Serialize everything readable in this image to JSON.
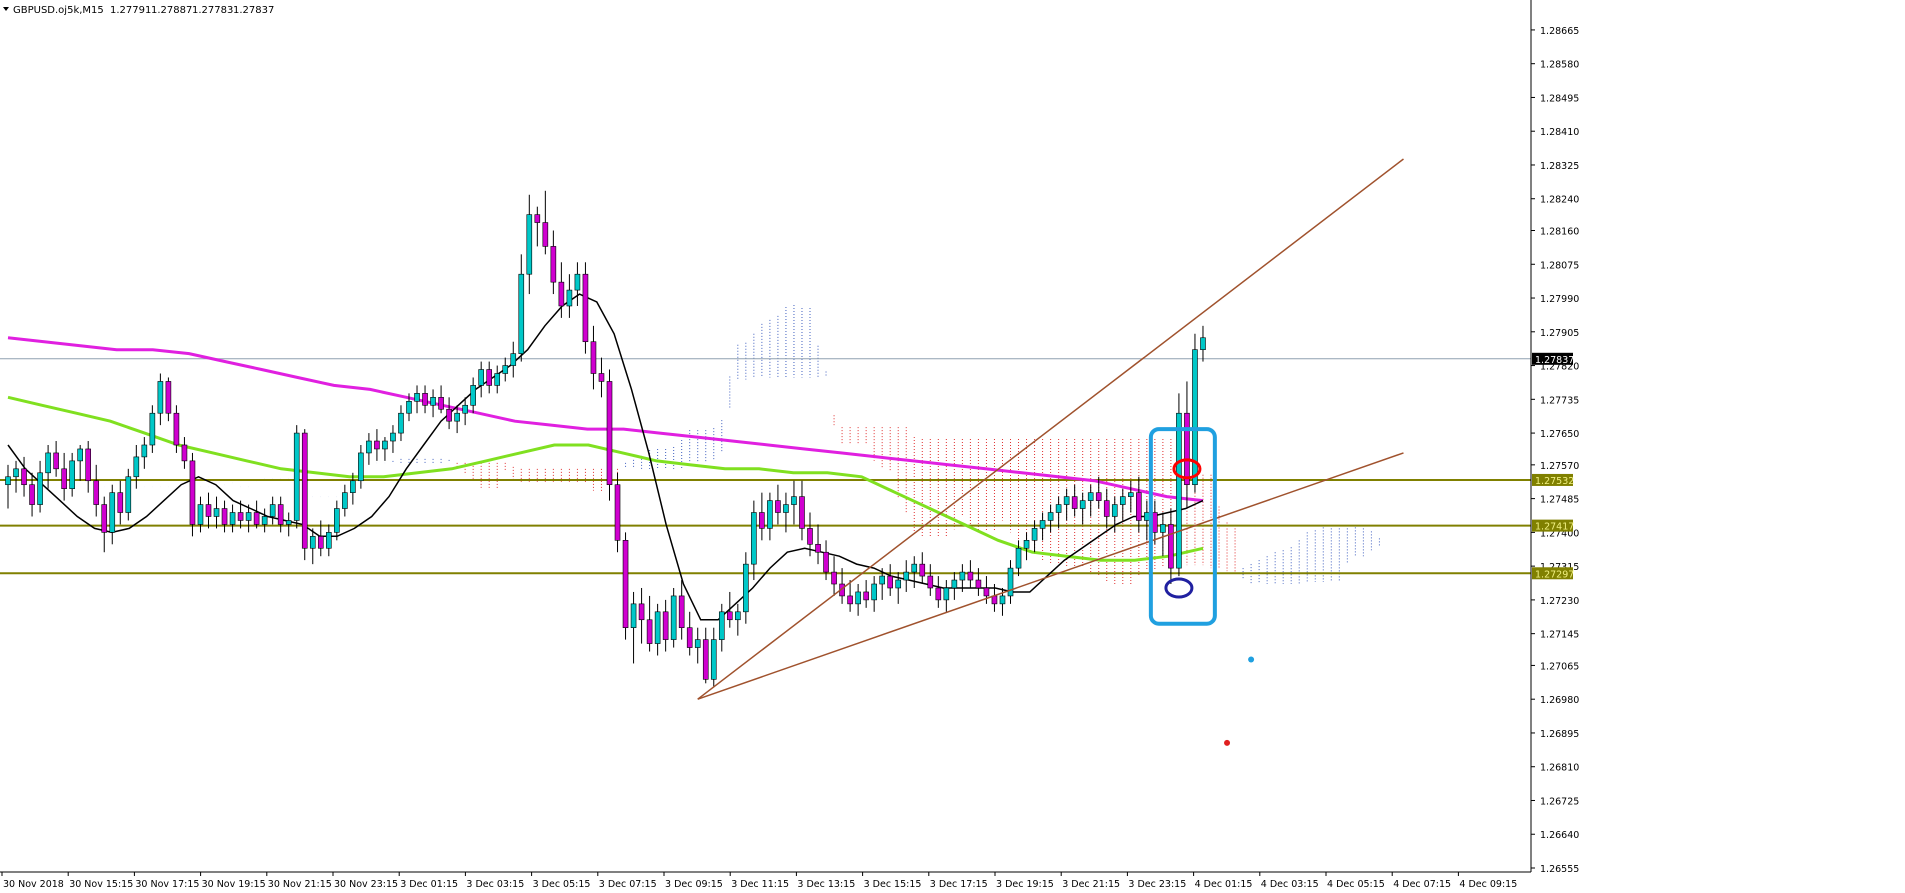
{
  "header": {
    "menu_icon": "triangle-down-icon",
    "symbol": "GBPUSD.oj5k,M15",
    "open": "1.27791",
    "high": "1.27887",
    "low": "1.27783",
    "close": "1.27837"
  },
  "colors": {
    "bull": "#00c8c8",
    "bear": "#d000d0",
    "sma_fast": "#000000",
    "sma_mid": "#80e020",
    "sma_slow": "#e020e0",
    "trendline": "#a0522d",
    "level": "#808000",
    "level_label_bg": "#808000",
    "level_label_text": "#f0f080",
    "price_label_bg": "#000000",
    "price_label_text": "#ffffff",
    "cloud_bear": "#e03030",
    "cloud_bull": "#4060c0",
    "annotation_box": "#20a0e0",
    "annotation_red": "#ff0000",
    "annotation_blue": "#2020a0"
  },
  "chart_data": {
    "type": "candlestick",
    "symbol": "GBPUSD.oj5k",
    "timeframe": "M15",
    "ylim": [
      1.26555,
      1.2869
    ],
    "y_ticks": [
      "1.28665",
      "1.28580",
      "1.28495",
      "1.28410",
      "1.28325",
      "1.28240",
      "1.28160",
      "1.28075",
      "1.27990",
      "1.27905",
      "1.27820",
      "1.27735",
      "1.27650",
      "1.27570",
      "1.27485",
      "1.27400",
      "1.27315",
      "1.27230",
      "1.27145",
      "1.27065",
      "1.26980",
      "1.26895",
      "1.26810",
      "1.26725",
      "1.26640",
      "1.26555"
    ],
    "x_ticks": [
      "30 Nov 2018",
      "30 Nov 15:15",
      "30 Nov 17:15",
      "30 Nov 19:15",
      "30 Nov 21:15",
      "30 Nov 23:15",
      "3 Dec 01:15",
      "3 Dec 03:15",
      "3 Dec 05:15",
      "3 Dec 07:15",
      "3 Dec 09:15",
      "3 Dec 11:15",
      "3 Dec 13:15",
      "3 Dec 15:15",
      "3 Dec 17:15",
      "3 Dec 19:15",
      "3 Dec 21:15",
      "3 Dec 23:15",
      "4 Dec 01:15",
      "4 Dec 03:15",
      "4 Dec 05:15",
      "4 Dec 07:15",
      "4 Dec 09:15"
    ],
    "bars": [
      [
        1.2752,
        1.2757,
        1.2746,
        1.2754
      ],
      [
        1.2754,
        1.2758,
        1.275,
        1.2756
      ],
      [
        1.2756,
        1.2759,
        1.2749,
        1.2752
      ],
      [
        1.2752,
        1.2755,
        1.2744,
        1.2747
      ],
      [
        1.2747,
        1.2758,
        1.2745,
        1.2755
      ],
      [
        1.2755,
        1.2762,
        1.2751,
        1.276
      ],
      [
        1.276,
        1.2763,
        1.2754,
        1.2756
      ],
      [
        1.2756,
        1.276,
        1.2748,
        1.2751
      ],
      [
        1.2751,
        1.276,
        1.2749,
        1.2758
      ],
      [
        1.2758,
        1.2762,
        1.2753,
        1.2761
      ],
      [
        1.2761,
        1.2763,
        1.275,
        1.2753
      ],
      [
        1.2753,
        1.2757,
        1.2744,
        1.2747
      ],
      [
        1.2747,
        1.2749,
        1.2735,
        1.274
      ],
      [
        1.274,
        1.2752,
        1.2737,
        1.275
      ],
      [
        1.275,
        1.2753,
        1.2742,
        1.2745
      ],
      [
        1.2745,
        1.2756,
        1.2743,
        1.2754
      ],
      [
        1.2754,
        1.2762,
        1.2751,
        1.2759
      ],
      [
        1.2759,
        1.2764,
        1.2756,
        1.2762
      ],
      [
        1.2762,
        1.2772,
        1.276,
        1.277
      ],
      [
        1.277,
        1.278,
        1.2767,
        1.2778
      ],
      [
        1.2778,
        1.2779,
        1.2768,
        1.277
      ],
      [
        1.277,
        1.2772,
        1.276,
        1.2762
      ],
      [
        1.2762,
        1.2764,
        1.2756,
        1.2758
      ],
      [
        1.2758,
        1.276,
        1.2739,
        1.2742
      ],
      [
        1.2742,
        1.2749,
        1.274,
        1.2747
      ],
      [
        1.2747,
        1.275,
        1.2741,
        1.2744
      ],
      [
        1.2744,
        1.2749,
        1.2741,
        1.2746
      ],
      [
        1.2746,
        1.2748,
        1.274,
        1.2742
      ],
      [
        1.2742,
        1.2747,
        1.274,
        1.2745
      ],
      [
        1.2745,
        1.2748,
        1.2741,
        1.2743
      ],
      [
        1.2743,
        1.2747,
        1.274,
        1.2745
      ],
      [
        1.2745,
        1.2748,
        1.2741,
        1.2742
      ],
      [
        1.2742,
        1.2746,
        1.274,
        1.2744
      ],
      [
        1.2744,
        1.2749,
        1.2742,
        1.2747
      ],
      [
        1.2747,
        1.2749,
        1.274,
        1.2742
      ],
      [
        1.2742,
        1.2745,
        1.2739,
        1.2743
      ],
      [
        1.2743,
        1.2767,
        1.2741,
        1.2765
      ],
      [
        1.2765,
        1.2766,
        1.2733,
        1.2736
      ],
      [
        1.2736,
        1.2741,
        1.2732,
        1.2739
      ],
      [
        1.2739,
        1.2743,
        1.2734,
        1.2736
      ],
      [
        1.2736,
        1.2742,
        1.2734,
        1.274
      ],
      [
        1.274,
        1.2748,
        1.2738,
        1.2746
      ],
      [
        1.2746,
        1.2752,
        1.2744,
        1.275
      ],
      [
        1.275,
        1.2755,
        1.2747,
        1.2753
      ],
      [
        1.2753,
        1.2762,
        1.2751,
        1.276
      ],
      [
        1.276,
        1.2765,
        1.2757,
        1.2763
      ],
      [
        1.2763,
        1.2766,
        1.2758,
        1.2761
      ],
      [
        1.2761,
        1.2764,
        1.2758,
        1.2763
      ],
      [
        1.2763,
        1.2767,
        1.276,
        1.2765
      ],
      [
        1.2765,
        1.2772,
        1.2763,
        1.277
      ],
      [
        1.277,
        1.2775,
        1.2768,
        1.2773
      ],
      [
        1.2773,
        1.2777,
        1.277,
        1.2775
      ],
      [
        1.2775,
        1.2777,
        1.277,
        1.2772
      ],
      [
        1.2772,
        1.2776,
        1.2769,
        1.2774
      ],
      [
        1.2774,
        1.2777,
        1.277,
        1.2771
      ],
      [
        1.2771,
        1.2774,
        1.2766,
        1.2768
      ],
      [
        1.2768,
        1.2772,
        1.2765,
        1.277
      ],
      [
        1.277,
        1.2774,
        1.2767,
        1.2772
      ],
      [
        1.2772,
        1.2779,
        1.277,
        1.2777
      ],
      [
        1.2777,
        1.2783,
        1.2774,
        1.2781
      ],
      [
        1.2781,
        1.2783,
        1.2775,
        1.2777
      ],
      [
        1.2777,
        1.2782,
        1.2775,
        1.278
      ],
      [
        1.278,
        1.2784,
        1.2778,
        1.2782
      ],
      [
        1.2782,
        1.2788,
        1.2779,
        1.2785
      ],
      [
        1.2785,
        1.281,
        1.2783,
        1.2805
      ],
      [
        1.2805,
        1.2825,
        1.28,
        1.282
      ],
      [
        1.282,
        1.2822,
        1.2812,
        1.2818
      ],
      [
        1.2818,
        1.2826,
        1.281,
        1.2812
      ],
      [
        1.2812,
        1.2816,
        1.28,
        1.2803
      ],
      [
        1.2803,
        1.2808,
        1.2794,
        1.2797
      ],
      [
        1.2797,
        1.2805,
        1.2794,
        1.2801
      ],
      [
        1.2801,
        1.2808,
        1.2797,
        1.2805
      ],
      [
        1.2805,
        1.2808,
        1.2785,
        1.2788
      ],
      [
        1.2788,
        1.2792,
        1.2776,
        1.278
      ],
      [
        1.278,
        1.2784,
        1.2774,
        1.2778
      ],
      [
        1.2778,
        1.2781,
        1.2748,
        1.2752
      ],
      [
        1.2752,
        1.2755,
        1.2735,
        1.2738
      ],
      [
        1.2738,
        1.274,
        1.2713,
        1.2716
      ],
      [
        1.2716,
        1.2725,
        1.2707,
        1.2722
      ],
      [
        1.2722,
        1.2726,
        1.2712,
        1.2718
      ],
      [
        1.2718,
        1.2724,
        1.271,
        1.2712
      ],
      [
        1.2712,
        1.2722,
        1.2709,
        1.272
      ],
      [
        1.272,
        1.2723,
        1.271,
        1.2713
      ],
      [
        1.2713,
        1.2726,
        1.2711,
        1.2724
      ],
      [
        1.2724,
        1.2728,
        1.2713,
        1.2716
      ],
      [
        1.2716,
        1.272,
        1.2709,
        1.2711
      ],
      [
        1.2711,
        1.2716,
        1.2707,
        1.2713
      ],
      [
        1.2713,
        1.2716,
        1.2702,
        1.2703
      ],
      [
        1.2703,
        1.2716,
        1.2701,
        1.2713
      ],
      [
        1.2713,
        1.2722,
        1.271,
        1.272
      ],
      [
        1.272,
        1.2725,
        1.2716,
        1.2718
      ],
      [
        1.2718,
        1.2722,
        1.2714,
        1.272
      ],
      [
        1.272,
        1.2735,
        1.2717,
        1.2732
      ],
      [
        1.2732,
        1.2748,
        1.2728,
        1.2745
      ],
      [
        1.2745,
        1.275,
        1.2738,
        1.2741
      ],
      [
        1.2741,
        1.275,
        1.2738,
        1.2748
      ],
      [
        1.2748,
        1.2752,
        1.2742,
        1.2745
      ],
      [
        1.2745,
        1.275,
        1.274,
        1.2747
      ],
      [
        1.2747,
        1.2753,
        1.2742,
        1.2749
      ],
      [
        1.2749,
        1.2753,
        1.2738,
        1.2741
      ],
      [
        1.2741,
        1.2745,
        1.2734,
        1.2737
      ],
      [
        1.2737,
        1.2742,
        1.2732,
        1.2735
      ],
      [
        1.2735,
        1.2738,
        1.2728,
        1.273
      ],
      [
        1.273,
        1.2734,
        1.2724,
        1.2727
      ],
      [
        1.2727,
        1.2731,
        1.2722,
        1.2724
      ],
      [
        1.2724,
        1.2728,
        1.272,
        1.2722
      ],
      [
        1.2722,
        1.2727,
        1.2719,
        1.2725
      ],
      [
        1.2725,
        1.2728,
        1.2721,
        1.2723
      ],
      [
        1.2723,
        1.2729,
        1.272,
        1.2727
      ],
      [
        1.2727,
        1.2731,
        1.2723,
        1.2729
      ],
      [
        1.2729,
        1.2732,
        1.2724,
        1.2726
      ],
      [
        1.2726,
        1.273,
        1.2722,
        1.2728
      ],
      [
        1.2728,
        1.2733,
        1.2725,
        1.273
      ],
      [
        1.273,
        1.2734,
        1.2726,
        1.2732
      ],
      [
        1.2732,
        1.2735,
        1.2727,
        1.2729
      ],
      [
        1.2729,
        1.2732,
        1.2724,
        1.2726
      ],
      [
        1.2726,
        1.2729,
        1.2721,
        1.2723
      ],
      [
        1.2723,
        1.2728,
        1.272,
        1.2726
      ],
      [
        1.2726,
        1.273,
        1.2723,
        1.2728
      ],
      [
        1.2728,
        1.2732,
        1.2725,
        1.273
      ],
      [
        1.273,
        1.2733,
        1.2726,
        1.2728
      ],
      [
        1.2728,
        1.2731,
        1.2724,
        1.2726
      ],
      [
        1.2726,
        1.2729,
        1.2722,
        1.2724
      ],
      [
        1.2724,
        1.2727,
        1.272,
        1.2722
      ],
      [
        1.2722,
        1.2726,
        1.2719,
        1.2724
      ],
      [
        1.2724,
        1.2733,
        1.2722,
        1.2731
      ],
      [
        1.2731,
        1.2738,
        1.2729,
        1.2736
      ],
      [
        1.2736,
        1.274,
        1.2733,
        1.2738
      ],
      [
        1.2738,
        1.2743,
        1.2735,
        1.2741
      ],
      [
        1.2741,
        1.2745,
        1.2738,
        1.2743
      ],
      [
        1.2743,
        1.2747,
        1.274,
        1.2745
      ],
      [
        1.2745,
        1.2749,
        1.2741,
        1.2747
      ],
      [
        1.2747,
        1.2751,
        1.2743,
        1.2749
      ],
      [
        1.2749,
        1.2752,
        1.2744,
        1.2746
      ],
      [
        1.2746,
        1.275,
        1.2742,
        1.2748
      ],
      [
        1.2748,
        1.2752,
        1.2744,
        1.275
      ],
      [
        1.275,
        1.2754,
        1.2746,
        1.2748
      ],
      [
        1.2748,
        1.2751,
        1.2741,
        1.2744
      ],
      [
        1.2744,
        1.2749,
        1.274,
        1.2747
      ],
      [
        1.2747,
        1.2751,
        1.2743,
        1.2749
      ],
      [
        1.2749,
        1.2753,
        1.2745,
        1.275
      ],
      [
        1.275,
        1.2754,
        1.274,
        1.2743
      ],
      [
        1.2743,
        1.2748,
        1.2738,
        1.2745
      ],
      [
        1.2745,
        1.2748,
        1.2737,
        1.274
      ],
      [
        1.274,
        1.2745,
        1.2734,
        1.2742
      ],
      [
        1.2742,
        1.2746,
        1.2727,
        1.2731
      ],
      [
        1.2731,
        1.2775,
        1.2729,
        1.277
      ],
      [
        1.277,
        1.2778,
        1.2746,
        1.2752
      ],
      [
        1.2752,
        1.279,
        1.275,
        1.2786
      ],
      [
        1.2786,
        1.2792,
        1.2783,
        1.2789
      ]
    ],
    "sma_fast": [
      1.2762,
      1.2756,
      1.2752,
      1.2748,
      1.2744,
      1.2741,
      1.274,
      1.2741,
      1.2744,
      1.2748,
      1.2752,
      1.2754,
      1.2752,
      1.2748,
      1.2746,
      1.2744,
      1.2743,
      1.2742,
      1.2739,
      1.2739,
      1.2741,
      1.2744,
      1.2749,
      1.2756,
      1.2762,
      1.2768,
      1.2772,
      1.2776,
      1.2779,
      1.2782,
      1.2786,
      1.2792,
      1.2797,
      1.28,
      1.2798,
      1.279,
      1.2776,
      1.276,
      1.2742,
      1.2727,
      1.2718,
      1.2718,
      1.2722,
      1.2726,
      1.2731,
      1.2735,
      1.2736,
      1.2735,
      1.2734,
      1.2732,
      1.2731,
      1.2729,
      1.2728,
      1.2727,
      1.2726,
      1.2726,
      1.2726,
      1.2726,
      1.2725,
      1.2725,
      1.2729,
      1.2733,
      1.2736,
      1.2739,
      1.2742,
      1.2744,
      1.2744,
      1.2745,
      1.2746,
      1.2748
    ],
    "sma_mid": [
      1.2774,
      1.2772,
      1.277,
      1.2768,
      1.2765,
      1.2762,
      1.276,
      1.2758,
      1.2756,
      1.2755,
      1.2754,
      1.2754,
      1.2755,
      1.2756,
      1.2758,
      1.276,
      1.2762,
      1.2762,
      1.276,
      1.2758,
      1.2757,
      1.2756,
      1.2756,
      1.2755,
      1.2755,
      1.2754,
      1.275,
      1.2746,
      1.2742,
      1.2738,
      1.2735,
      1.2734,
      1.2733,
      1.2733,
      1.2734,
      1.2736
    ],
    "sma_slow": [
      1.2789,
      1.2788,
      1.2787,
      1.2786,
      1.2786,
      1.2785,
      1.2783,
      1.2781,
      1.2779,
      1.2777,
      1.2776,
      1.2774,
      1.2772,
      1.277,
      1.2768,
      1.2767,
      1.2766,
      1.2766,
      1.2765,
      1.2764,
      1.2763,
      1.2762,
      1.2761,
      1.276,
      1.2759,
      1.2758,
      1.2757,
      1.2756,
      1.2755,
      1.2754,
      1.2753,
      1.2751,
      1.2749,
      1.2748
    ],
    "levels": [
      {
        "price": 1.27532,
        "label": "1.27532"
      },
      {
        "price": 1.27417,
        "label": "1.27417"
      },
      {
        "price": 1.27297,
        "label": "1.27297"
      }
    ],
    "bid_line": {
      "price": 1.27837,
      "label": "1.27837"
    },
    "trendlines": [
      {
        "from": [
          86,
          1.2698
        ],
        "to": [
          174,
          1.2834
        ]
      },
      {
        "from": [
          86,
          1.2698
        ],
        "to": [
          174,
          1.276
        ]
      }
    ],
    "grid": false
  }
}
